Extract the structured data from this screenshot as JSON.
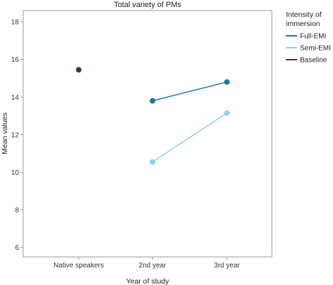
{
  "chart_data": {
    "type": "line",
    "title": "Total variety of PMs",
    "xlabel": "Year of study",
    "ylabel": "Mean values",
    "categories": [
      "Native speakers",
      "2nd year",
      "3rd year"
    ],
    "ylim": [
      5.5,
      18.6
    ],
    "yticks": [
      6,
      8,
      10,
      12,
      14,
      16,
      18
    ],
    "grid": false,
    "legend": {
      "title": "Intensity of immersion",
      "title_lines": [
        "Intensity of",
        "immersion"
      ],
      "placement": "right"
    },
    "series": [
      {
        "name": "Full-EMI",
        "color": "#1e78a0",
        "values": [
          null,
          13.8,
          14.8
        ]
      },
      {
        "name": "Semi-EMI",
        "color": "#8fd0ec",
        "values": [
          null,
          10.55,
          13.15
        ]
      },
      {
        "name": "Baseline",
        "color": "#4a3244",
        "values": [
          15.45,
          null,
          null
        ]
      }
    ]
  }
}
